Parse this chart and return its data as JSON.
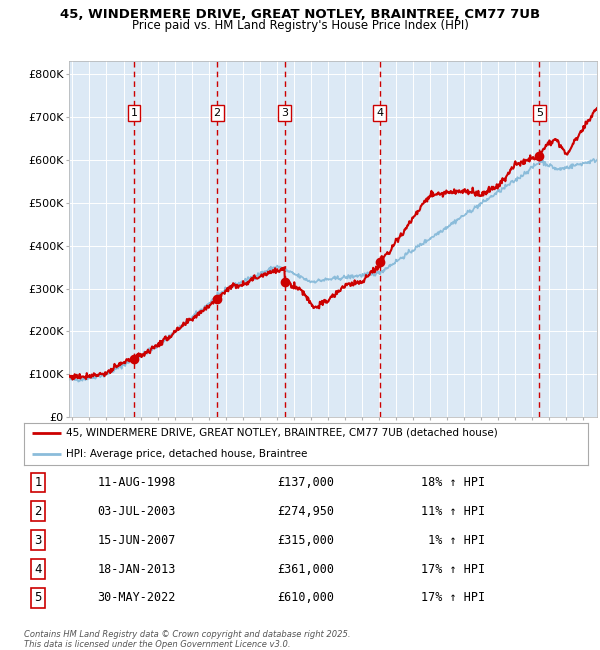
{
  "title_line1": "45, WINDERMERE DRIVE, GREAT NOTLEY, BRAINTREE, CM77 7UB",
  "title_line2": "Price paid vs. HM Land Registry's House Price Index (HPI)",
  "ylim": [
    0,
    830000
  ],
  "yticks": [
    0,
    100000,
    200000,
    300000,
    400000,
    500000,
    600000,
    700000,
    800000
  ],
  "ytick_labels": [
    "£0",
    "£100K",
    "£200K",
    "£300K",
    "£400K",
    "£500K",
    "£600K",
    "£700K",
    "£800K"
  ],
  "plot_bg_color": "#dce9f5",
  "fig_bg_color": "#ffffff",
  "red_line_color": "#cc0000",
  "blue_line_color": "#8bbcda",
  "grid_color": "#ffffff",
  "purchases": [
    {
      "label": "1",
      "date_num": 1998.61,
      "price": 137000
    },
    {
      "label": "2",
      "date_num": 2003.5,
      "price": 274950
    },
    {
      "label": "3",
      "date_num": 2007.46,
      "price": 315000
    },
    {
      "label": "4",
      "date_num": 2013.05,
      "price": 361000
    },
    {
      "label": "5",
      "date_num": 2022.41,
      "price": 610000
    }
  ],
  "legend_entries": [
    "45, WINDERMERE DRIVE, GREAT NOTLEY, BRAINTREE, CM77 7UB (detached house)",
    "HPI: Average price, detached house, Braintree"
  ],
  "table_rows": [
    [
      "1",
      "11-AUG-1998",
      "£137,000",
      "18% ↑ HPI"
    ],
    [
      "2",
      "03-JUL-2003",
      "£274,950",
      "11% ↑ HPI"
    ],
    [
      "3",
      "15-JUN-2007",
      "£315,000",
      " 1% ↑ HPI"
    ],
    [
      "4",
      "18-JAN-2013",
      "£361,000",
      "17% ↑ HPI"
    ],
    [
      "5",
      "30-MAY-2022",
      "£610,000",
      "17% ↑ HPI"
    ]
  ],
  "footnote": "Contains HM Land Registry data © Crown copyright and database right 2025.\nThis data is licensed under the Open Government Licence v3.0.",
  "xmin": 1994.8,
  "xmax": 2025.8
}
